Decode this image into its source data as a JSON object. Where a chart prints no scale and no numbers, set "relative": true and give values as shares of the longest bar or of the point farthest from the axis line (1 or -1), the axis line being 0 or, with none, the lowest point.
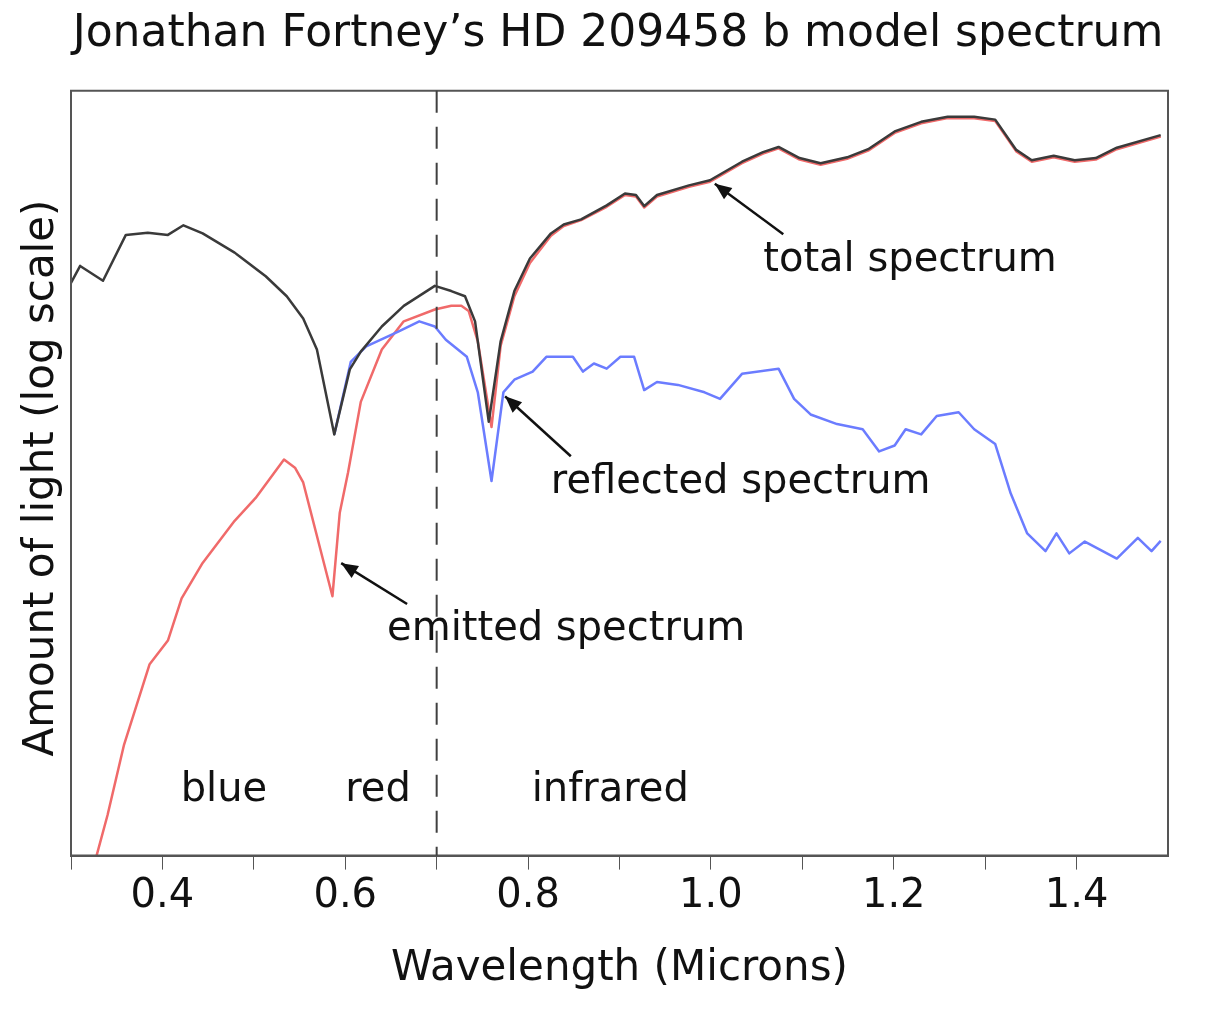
{
  "chart_data": {
    "type": "line",
    "title": "Jonathan Fortney’s HD 209458 b model spectrum",
    "xlabel": "Wavelength (Microns)",
    "ylabel": "Amount of light (log scale)",
    "relative": true,
    "xlim": [
      0.3,
      1.5
    ],
    "xticks": [
      {
        "value": 0.3,
        "label": null
      },
      0.4,
      {
        "value": 0.5,
        "label": null
      },
      0.6,
      {
        "value": 0.7,
        "label": null
      },
      0.8,
      {
        "value": 0.9,
        "label": null
      },
      {
        "value": 1.0,
        "label": "1.0"
      },
      {
        "value": 1.1,
        "label": null
      },
      1.2,
      {
        "value": 1.3,
        "label": null
      },
      1.4
    ],
    "grid": false,
    "legend": false,
    "marker": "none",
    "line_style": "solid",
    "ref_lines": [
      {
        "axis": "x",
        "value": 0.7,
        "line_style": "dashed",
        "color": "#404040"
      }
    ],
    "annotations": [
      {
        "text": "total spectrum",
        "x": 0.999,
        "y": 0.914
      },
      {
        "text": "reflected spectrum",
        "x": 0.77,
        "y": 0.627
      },
      {
        "text": "emitted spectrum",
        "x": 0.59,
        "y": 0.4
      },
      "blue",
      "red",
      "infrared"
    ],
    "series": [
      {
        "color": "#3a3a3a",
        "x": [
          0.3,
          0.31,
          0.335,
          0.36,
          0.384,
          0.406,
          0.423,
          0.444,
          0.479,
          0.513,
          0.536,
          0.554,
          0.569,
          0.588,
          0.605,
          0.617,
          0.64,
          0.664,
          0.698,
          0.716,
          0.731,
          0.742,
          0.757,
          0.77,
          0.785,
          0.802,
          0.825,
          0.839,
          0.858,
          0.886,
          0.906,
          0.918,
          0.927,
          0.941,
          0.976,
          0.999,
          1.034,
          1.057,
          1.074,
          1.097,
          1.12,
          1.149,
          1.172,
          1.201,
          1.23,
          1.259,
          1.288,
          1.311,
          1.334,
          1.351,
          1.375,
          1.398,
          1.421,
          1.444,
          1.492
        ],
        "values": [
          0.775,
          0.798,
          0.778,
          0.84,
          0.843,
          0.84,
          0.853,
          0.842,
          0.816,
          0.784,
          0.757,
          0.727,
          0.685,
          0.57,
          0.658,
          0.682,
          0.716,
          0.744,
          0.771,
          0.764,
          0.757,
          0.723,
          0.587,
          0.696,
          0.764,
          0.808,
          0.842,
          0.854,
          0.861,
          0.88,
          0.896,
          0.894,
          0.879,
          0.894,
          0.907,
          0.914,
          0.939,
          0.952,
          0.959,
          0.944,
          0.937,
          0.945,
          0.956,
          0.98,
          0.993,
          1,
          1,
          0.996,
          0.955,
          0.941,
          0.947,
          0.941,
          0.944,
          0.958,
          0.975
        ]
      },
      {
        "color": "#6b7cff",
        "x": [
          0.588,
          0.606,
          0.623,
          0.658,
          0.681,
          0.698,
          0.71,
          0.733,
          0.745,
          0.76,
          0.773,
          0.785,
          0.805,
          0.82,
          0.849,
          0.86,
          0.872,
          0.886,
          0.901,
          0.916,
          0.927,
          0.941,
          0.964,
          0.993,
          1.01,
          1.034,
          1.074,
          1.091,
          1.109,
          1.138,
          1.166,
          1.184,
          1.201,
          1.213,
          1.23,
          1.247,
          1.271,
          1.288,
          1.311,
          1.328,
          1.346,
          1.366,
          1.378,
          1.392,
          1.409,
          1.444,
          1.467,
          1.482,
          1.492
        ],
        "values": [
          0.57,
          0.668,
          0.689,
          0.709,
          0.723,
          0.716,
          0.698,
          0.675,
          0.627,
          0.507,
          0.627,
          0.644,
          0.655,
          0.675,
          0.675,
          0.655,
          0.666,
          0.659,
          0.675,
          0.675,
          0.63,
          0.641,
          0.637,
          0.627,
          0.618,
          0.652,
          0.659,
          0.618,
          0.597,
          0.584,
          0.577,
          0.547,
          0.555,
          0.577,
          0.57,
          0.595,
          0.6,
          0.577,
          0.557,
          0.49,
          0.436,
          0.412,
          0.436,
          0.409,
          0.425,
          0.402,
          0.43,
          0.412,
          0.426
        ]
      },
      {
        "color": "#f06a6a",
        "x": [
          0.328,
          0.34,
          0.358,
          0.386,
          0.406,
          0.421,
          0.444,
          0.479,
          0.502,
          0.533,
          0.545,
          0.554,
          0.571,
          0.586,
          0.594,
          0.603,
          0.617,
          0.64,
          0.664,
          0.698,
          0.716,
          0.727,
          0.735,
          0.745,
          0.76,
          0.77,
          0.785,
          0.802,
          0.825,
          0.839,
          0.858,
          0.886,
          0.906,
          0.918,
          0.927,
          0.941,
          0.976,
          0.999,
          1.034,
          1.057,
          1.074,
          1.097,
          1.12,
          1.149,
          1.172,
          1.201,
          1.23,
          1.259,
          1.288,
          1.311,
          1.334,
          1.351,
          1.375,
          1.398,
          1.421,
          1.444,
          1.492
        ],
        "values": [
          0,
          0.055,
          0.15,
          0.259,
          0.291,
          0.348,
          0.396,
          0.453,
          0.484,
          0.536,
          0.525,
          0.505,
          0.423,
          0.351,
          0.464,
          0.518,
          0.614,
          0.685,
          0.723,
          0.739,
          0.744,
          0.744,
          0.737,
          0.696,
          0.58,
          0.69,
          0.757,
          0.802,
          0.839,
          0.852,
          0.86,
          0.878,
          0.894,
          0.892,
          0.877,
          0.892,
          0.905,
          0.912,
          0.937,
          0.95,
          0.957,
          0.942,
          0.935,
          0.943,
          0.954,
          0.978,
          0.991,
          0.998,
          0.998,
          0.994,
          0.953,
          0.939,
          0.945,
          0.939,
          0.942,
          0.956,
          0.973
        ]
      }
    ]
  }
}
